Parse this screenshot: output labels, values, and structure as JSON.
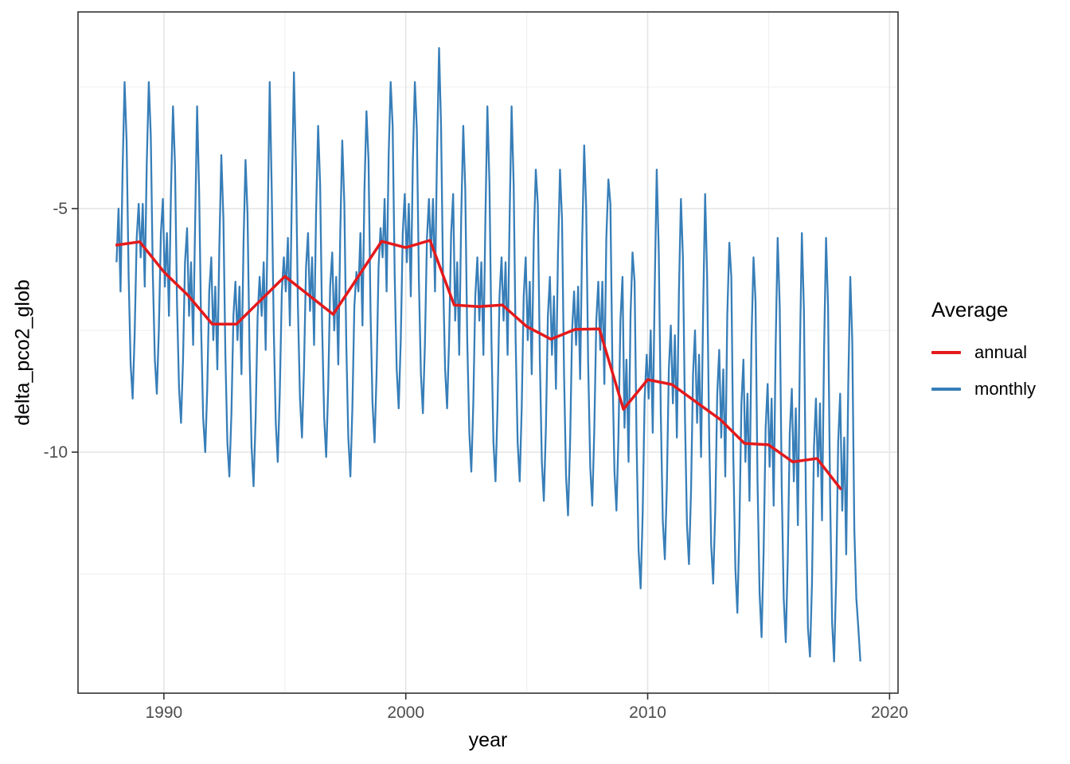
{
  "chart_data": {
    "type": "line",
    "title": "",
    "xlabel": "year",
    "ylabel": "delta_pco2_glob",
    "xlim": [
      1986.45,
      2020.35
    ],
    "ylim": [
      -14.95,
      -0.96
    ],
    "grid": true,
    "x_axis": {
      "major_ticks": [
        1990,
        2000,
        2010,
        2020
      ],
      "minor_gridlines": [
        1995,
        2005,
        2015
      ]
    },
    "y_axis": {
      "major_ticks": [
        -5,
        -10
      ],
      "minor_gridlines": [
        -2.5,
        -7.5,
        -12.5
      ]
    },
    "legend": {
      "title": "Average",
      "position": "right",
      "entries": [
        {
          "label": "annual",
          "color": "#e41a1c"
        },
        {
          "label": "monthly",
          "color": "#377eb8"
        }
      ]
    },
    "series": [
      {
        "name": "annual",
        "color": "#e41a1c",
        "stroke_width": 3.5,
        "x": [
          1988,
          1989,
          1990,
          1991,
          1992,
          1993,
          1994,
          1995,
          1996,
          1997,
          1998,
          1999,
          2000,
          2001,
          2002,
          2003,
          2004,
          2005,
          2006,
          2007,
          2008,
          2009,
          2010,
          2011,
          2012,
          2013,
          2014,
          2015,
          2016,
          2017,
          2018
        ],
        "values": [
          -5.75,
          -5.68,
          -6.3,
          -6.78,
          -7.37,
          -7.37,
          -6.88,
          -6.39,
          -6.78,
          -7.17,
          -6.42,
          -5.67,
          -5.8,
          -5.65,
          -6.98,
          -7.01,
          -6.98,
          -7.42,
          -7.68,
          -7.48,
          -7.47,
          -9.12,
          -8.51,
          -8.61,
          -8.97,
          -9.33,
          -9.82,
          -9.85,
          -10.2,
          -10.13,
          -10.77
        ]
      },
      {
        "name": "monthly",
        "color": "#377eb8",
        "stroke_width": 2.3,
        "start_year": 1988,
        "points_per_year": 12,
        "values_by_year": [
          [
            -6.1,
            -5.0,
            -6.7,
            -4.2,
            -2.4,
            -3.6,
            -6.4,
            -8.2,
            -8.9,
            -7.6,
            -5.6,
            -4.9
          ],
          [
            -6.0,
            -4.9,
            -6.6,
            -4.1,
            -2.4,
            -3.5,
            -6.3,
            -8.1,
            -8.8,
            -7.5,
            -5.5,
            -4.8
          ],
          [
            -6.6,
            -5.5,
            -7.2,
            -4.7,
            -2.9,
            -4.1,
            -6.9,
            -8.7,
            -9.4,
            -8.1,
            -6.1,
            -5.4
          ],
          [
            -7.2,
            -6.1,
            -7.8,
            -5.3,
            -2.9,
            -4.7,
            -7.5,
            -9.3,
            -10.0,
            -8.7,
            -6.7,
            -6.0
          ],
          [
            -7.7,
            -6.6,
            -8.3,
            -5.8,
            -3.9,
            -5.2,
            -8.0,
            -9.8,
            -10.5,
            -9.2,
            -7.2,
            -6.5
          ],
          [
            -7.7,
            -6.6,
            -8.4,
            -5.7,
            -4.0,
            -5.1,
            -8.0,
            -9.9,
            -10.7,
            -9.3,
            -7.2,
            -6.4
          ],
          [
            -7.2,
            -6.1,
            -7.9,
            -5.2,
            -2.4,
            -4.6,
            -7.5,
            -9.4,
            -10.2,
            -8.8,
            -6.7,
            -6.0
          ],
          [
            -6.7,
            -5.6,
            -7.4,
            -4.7,
            -2.2,
            -4.1,
            -7.0,
            -8.9,
            -9.7,
            -8.3,
            -6.2,
            -5.5
          ],
          [
            -7.1,
            -6.0,
            -7.8,
            -5.1,
            -3.3,
            -4.5,
            -7.4,
            -9.3,
            -10.1,
            -8.7,
            -6.6,
            -5.9
          ],
          [
            -7.5,
            -6.4,
            -8.2,
            -5.5,
            -3.6,
            -4.9,
            -7.8,
            -9.7,
            -10.5,
            -9.1,
            -7.0,
            -6.3
          ],
          [
            -6.7,
            -5.5,
            -7.4,
            -4.6,
            -3.0,
            -4.0,
            -7.1,
            -9.0,
            -9.8,
            -8.4,
            -6.2,
            -5.4
          ],
          [
            -6.0,
            -4.8,
            -6.7,
            -3.9,
            -2.4,
            -3.3,
            -6.4,
            -8.3,
            -9.1,
            -7.7,
            -5.5,
            -4.7
          ],
          [
            -6.1,
            -4.9,
            -6.8,
            -4.0,
            -2.4,
            -3.4,
            -6.5,
            -8.4,
            -9.2,
            -7.8,
            -5.6,
            -4.8
          ],
          [
            -6.0,
            -4.8,
            -6.7,
            -3.9,
            -1.7,
            -3.3,
            -6.4,
            -8.3,
            -9.1,
            -7.7,
            -5.5,
            -4.7
          ],
          [
            -7.3,
            -6.1,
            -8.0,
            -5.2,
            -3.3,
            -4.6,
            -7.7,
            -9.6,
            -10.4,
            -9.0,
            -6.8,
            -6.0
          ],
          [
            -7.3,
            -6.1,
            -8.0,
            -5.2,
            -2.9,
            -4.5,
            -7.7,
            -9.8,
            -10.6,
            -9.1,
            -6.8,
            -6.0
          ],
          [
            -7.3,
            -6.1,
            -8.0,
            -5.2,
            -2.9,
            -4.5,
            -7.7,
            -9.8,
            -10.6,
            -9.1,
            -6.8,
            -6.0
          ],
          [
            -7.7,
            -6.5,
            -8.4,
            -5.6,
            -4.2,
            -4.9,
            -8.1,
            -10.2,
            -11.0,
            -9.5,
            -7.2,
            -6.4
          ],
          [
            -8.0,
            -6.8,
            -8.7,
            -5.9,
            -4.2,
            -5.2,
            -8.4,
            -10.5,
            -11.3,
            -9.8,
            -7.5,
            -6.7
          ],
          [
            -7.8,
            -6.6,
            -8.5,
            -5.7,
            -3.7,
            -5.0,
            -8.2,
            -10.3,
            -11.1,
            -9.6,
            -7.3,
            -6.5
          ],
          [
            -7.9,
            -6.5,
            -8.6,
            -5.6,
            -4.4,
            -4.9,
            -8.2,
            -10.4,
            -11.2,
            -9.7,
            -7.3,
            -6.4
          ],
          [
            -9.5,
            -8.1,
            -10.2,
            -7.2,
            -5.9,
            -6.5,
            -9.8,
            -12.0,
            -12.8,
            -11.3,
            -8.9,
            -8.0
          ],
          [
            -8.9,
            -7.5,
            -9.6,
            -6.6,
            -4.2,
            -5.9,
            -9.2,
            -11.4,
            -12.2,
            -10.7,
            -8.3,
            -7.4
          ],
          [
            -9.0,
            -7.6,
            -9.7,
            -6.7,
            -4.8,
            -6.0,
            -9.3,
            -11.5,
            -12.3,
            -10.8,
            -8.4,
            -7.5
          ],
          [
            -9.4,
            -8.0,
            -10.1,
            -7.1,
            -4.7,
            -6.4,
            -9.7,
            -11.9,
            -12.7,
            -11.2,
            -8.8,
            -7.9
          ],
          [
            -9.7,
            -8.3,
            -10.5,
            -7.2,
            -5.7,
            -6.4,
            -10.1,
            -12.4,
            -13.3,
            -11.6,
            -9.0,
            -8.1
          ],
          [
            -10.2,
            -8.8,
            -11.0,
            -7.7,
            -6.0,
            -6.9,
            -10.6,
            -12.9,
            -13.8,
            -12.1,
            -9.5,
            -8.6
          ],
          [
            -10.3,
            -8.9,
            -11.1,
            -7.8,
            -5.6,
            -7.0,
            -10.7,
            -13.0,
            -13.9,
            -12.2,
            -9.6,
            -8.7
          ],
          [
            -10.6,
            -9.1,
            -11.5,
            -8.0,
            -5.5,
            -7.1,
            -11.0,
            -13.6,
            -14.2,
            -12.7,
            -9.9,
            -8.9
          ],
          [
            -10.5,
            -9.0,
            -11.4,
            -7.9,
            -5.6,
            -7.0,
            -10.9,
            -13.5,
            -14.3,
            -12.6,
            -9.8,
            -8.8
          ],
          [
            -11.2,
            -9.7,
            -12.1,
            -8.6,
            -6.4,
            -7.7,
            -11.6,
            -13.0,
            -13.6,
            -14.3
          ]
        ]
      }
    ],
    "style": {
      "panel_border_color": "#333333",
      "tick_color": "#333333",
      "tick_label_color": "#4d4d4d",
      "grid_major_color": "#e5e5e5",
      "grid_minor_color": "#f0f0f0",
      "background": "#ffffff"
    }
  }
}
